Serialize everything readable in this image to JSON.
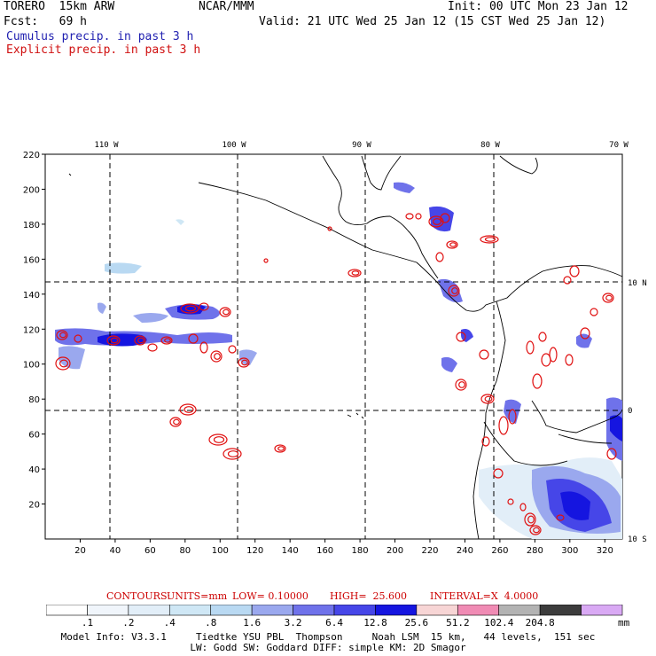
{
  "header": {
    "model": "TORERO  15km ARW",
    "center": "NCAR/MMM",
    "init": "Init: 00 UTC Mon 23 Jan 12",
    "fcst": "Fcst:   69 h",
    "valid": "Valid: 21 UTC Wed 25 Jan 12 (15 CST Wed 25 Jan 12)",
    "field1": "Cumulus precip. in past 3 h",
    "field2": "Explicit precip. in past 3 h"
  },
  "colors": {
    "field1": "#1f1fb0",
    "field2": "#d01010",
    "contour": "#e01010"
  },
  "map": {
    "top_lon_labels": [
      "110 W",
      "100 W",
      "90 W",
      "80 W",
      "70 W"
    ],
    "right_lat_labels": [
      "10 N",
      "0",
      "10 S"
    ],
    "y_ticks": [
      "220",
      "200",
      "180",
      "160",
      "140",
      "120",
      "100",
      "80",
      "60",
      "40",
      "20"
    ],
    "x_ticks": [
      "20",
      "40",
      "60",
      "80",
      "100",
      "120",
      "140",
      "160",
      "180",
      "200",
      "220",
      "240",
      "260",
      "280",
      "300",
      "320"
    ]
  },
  "contours": {
    "label": "CONTOURS:",
    "units": "UNITS=mm",
    "low": "LOW= 0.10000",
    "high": "HIGH=  25.600",
    "interval": "INTERVAL=X  4.0000"
  },
  "colorbar": {
    "colors": [
      "#ffffff",
      "#f0f5fb",
      "#e2eef8",
      "#cfe7f5",
      "#b9d9f2",
      "#9aa8ee",
      "#6f72ea",
      "#4646e8",
      "#1515e0",
      "#f7d5d5",
      "#f08bb4",
      "#b3b3b3",
      "#3c3c3c",
      "#d9a9f4"
    ],
    "labels": [
      ".1",
      ".2",
      ".4",
      ".8",
      "1.6",
      "3.2",
      "6.4",
      "12.8",
      "25.6",
      "51.2",
      "102.4",
      "204.8"
    ],
    "unit": "mm"
  },
  "footer": {
    "line1": "Model Info: V3.3.1     Tiedtke YSU PBL  Thompson     Noah LSM  15 km,   44 levels,  151 sec",
    "line2": "LW: Godd SW: Goddard DIFF: simple KM: 2D Smagor"
  }
}
